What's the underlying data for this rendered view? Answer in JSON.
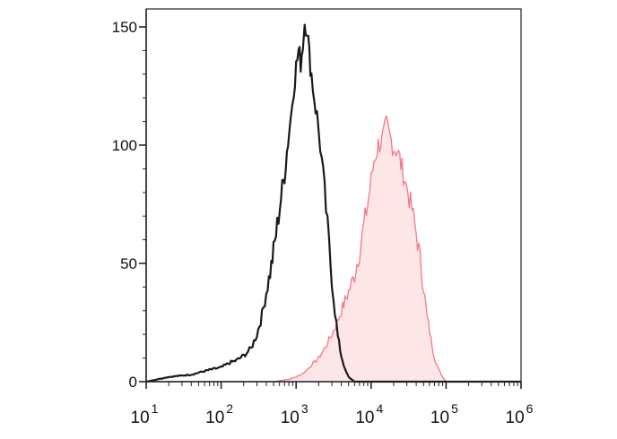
{
  "chart_data": {
    "type": "area",
    "title": "",
    "xlabel": "",
    "ylabel": "",
    "x_scale": "log",
    "xlim": [
      10,
      1000000
    ],
    "ylim": [
      0,
      160
    ],
    "grid": false,
    "legend": "none",
    "y_ticks": [
      {
        "value": 0,
        "label": "0"
      },
      {
        "value": 50,
        "label": "50"
      },
      {
        "value": 100,
        "label": "100"
      },
      {
        "value": 150,
        "label": "150"
      }
    ],
    "x_ticks": [
      {
        "value": 10,
        "base": "10",
        "exp": "1"
      },
      {
        "value": 100,
        "base": "10",
        "exp": "2"
      },
      {
        "value": 1000,
        "base": "10",
        "exp": "3"
      },
      {
        "value": 10000,
        "base": "10",
        "exp": "4"
      },
      {
        "value": 100000,
        "base": "10",
        "exp": "5"
      },
      {
        "value": 1000000,
        "base": "10",
        "exp": "6"
      }
    ],
    "series": [
      {
        "color": "#1a1a1a",
        "fill": "none",
        "points": [
          [
            10,
            0
          ],
          [
            20,
            2
          ],
          [
            40,
            3
          ],
          [
            70,
            5
          ],
          [
            100,
            6
          ],
          [
            130,
            8
          ],
          [
            160,
            9
          ],
          [
            200,
            11
          ],
          [
            250,
            14
          ],
          [
            300,
            20
          ],
          [
            350,
            28
          ],
          [
            400,
            38
          ],
          [
            450,
            46
          ],
          [
            500,
            55
          ],
          [
            560,
            66
          ],
          [
            630,
            78
          ],
          [
            700,
            88
          ],
          [
            780,
            102
          ],
          [
            850,
            112
          ],
          [
            930,
            125
          ],
          [
            1000,
            133
          ],
          [
            1080,
            140
          ],
          [
            1150,
            135
          ],
          [
            1230,
            143
          ],
          [
            1300,
            152
          ],
          [
            1400,
            150
          ],
          [
            1500,
            138
          ],
          [
            1600,
            130
          ],
          [
            1750,
            120
          ],
          [
            1900,
            112
          ],
          [
            2100,
            100
          ],
          [
            2300,
            87
          ],
          [
            2500,
            73
          ],
          [
            2750,
            58
          ],
          [
            3000,
            43
          ],
          [
            3300,
            30
          ],
          [
            3600,
            19
          ],
          [
            4000,
            11
          ],
          [
            4500,
            5
          ],
          [
            5000,
            2
          ],
          [
            6000,
            0
          ],
          [
            1000000,
            0
          ]
        ]
      },
      {
        "color": "#f07a83",
        "fill": "#fde6e8",
        "points": [
          [
            10,
            0
          ],
          [
            200,
            0
          ],
          [
            500,
            0
          ],
          [
            800,
            1
          ],
          [
            1000,
            2
          ],
          [
            1300,
            4
          ],
          [
            1600,
            7
          ],
          [
            2000,
            10
          ],
          [
            2500,
            15
          ],
          [
            3000,
            20
          ],
          [
            3500,
            25
          ],
          [
            4000,
            30
          ],
          [
            4500,
            34
          ],
          [
            5000,
            38
          ],
          [
            6000,
            45
          ],
          [
            7000,
            55
          ],
          [
            8000,
            66
          ],
          [
            9000,
            75
          ],
          [
            10000,
            85
          ],
          [
            11000,
            94
          ],
          [
            12500,
            100
          ],
          [
            14000,
            102
          ],
          [
            16000,
            108
          ],
          [
            18000,
            103
          ],
          [
            20000,
            99
          ],
          [
            22500,
            98
          ],
          [
            25000,
            92
          ],
          [
            28000,
            86
          ],
          [
            31000,
            80
          ],
          [
            35000,
            73
          ],
          [
            40000,
            63
          ],
          [
            45000,
            52
          ],
          [
            50000,
            40
          ],
          [
            56000,
            27
          ],
          [
            63000,
            18
          ],
          [
            70000,
            10
          ],
          [
            80000,
            5
          ],
          [
            90000,
            2
          ],
          [
            100000,
            0
          ],
          [
            1000000,
            0
          ]
        ]
      }
    ]
  }
}
